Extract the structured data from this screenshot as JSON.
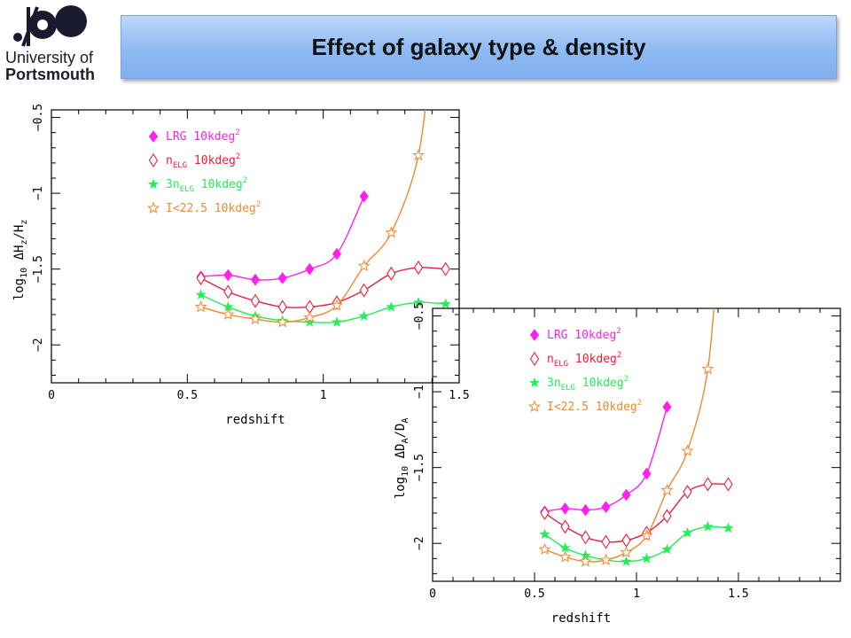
{
  "header": {
    "title": "Effect of galaxy type & density",
    "logo": {
      "line1": "University of",
      "line2": "Portsmouth",
      "color": "#1a1a2e"
    }
  },
  "chart_data": [
    {
      "type": "line",
      "xlabel": "redshift",
      "ylabel": {
        "prefix": "log",
        "sub": "10",
        "main": " ΔH",
        "sub2": "z",
        "tail": "/H",
        "sub3": "z"
      },
      "xlim": [
        0,
        1.5
      ],
      "ylim": [
        -2.25,
        -0.45
      ],
      "xticks": [
        0,
        0.5,
        1,
        1.5
      ],
      "xtick_labels": [
        "0",
        "0.5",
        "1",
        "1.5"
      ],
      "yticks": [
        -2,
        -1.5,
        -1,
        -0.5
      ],
      "ytick_labels": [
        "−2",
        "−1.5",
        "−1",
        "−0.5"
      ],
      "legend_placement": "top-left",
      "series": [
        {
          "name": "LRG 10kdeg",
          "sup": "2",
          "marker": "diamond-filled",
          "color": "#ff22ee",
          "x": [
            0.55,
            0.65,
            0.75,
            0.85,
            0.95,
            1.05,
            1.15
          ],
          "y": [
            -1.55,
            -1.54,
            -1.57,
            -1.56,
            -1.5,
            -1.4,
            -1.02
          ]
        },
        {
          "name": "n",
          "sub": "ELG",
          "tail": " 10kdeg",
          "sup": "2",
          "marker": "diamond-open",
          "color": "#e8203a",
          "x": [
            0.55,
            0.65,
            0.75,
            0.85,
            0.95,
            1.05,
            1.15,
            1.25,
            1.35,
            1.45
          ],
          "y": [
            -1.56,
            -1.65,
            -1.71,
            -1.75,
            -1.75,
            -1.72,
            -1.64,
            -1.53,
            -1.49,
            -1.5
          ]
        },
        {
          "name": "3n",
          "sub": "ELG",
          "tail": " 10kdeg",
          "sup": "2",
          "marker": "star-filled",
          "color": "#22ee55",
          "x": [
            0.55,
            0.65,
            0.75,
            0.85,
            0.95,
            1.05,
            1.15,
            1.25,
            1.35,
            1.45
          ],
          "y": [
            -1.67,
            -1.75,
            -1.81,
            -1.84,
            -1.85,
            -1.85,
            -1.81,
            -1.75,
            -1.72,
            -1.73
          ]
        },
        {
          "name": "I<22.5 10kdeg",
          "sup": "2",
          "marker": "star-open",
          "color": "#f08a30",
          "x": [
            0.55,
            0.65,
            0.75,
            0.85,
            0.95,
            1.05,
            1.15,
            1.25,
            1.35
          ],
          "y": [
            -1.75,
            -1.8,
            -1.83,
            -1.85,
            -1.82,
            -1.74,
            -1.48,
            -1.26,
            -0.75
          ]
        }
      ]
    },
    {
      "type": "line",
      "xlabel": "redshift",
      "ylabel": {
        "prefix": "log",
        "sub": "10",
        "main": " ΔD",
        "sub2": "A",
        "tail": "/D",
        "sub3": "A"
      },
      "xlim": [
        0,
        2
      ],
      "ylim": [
        -2.25,
        -0.45
      ],
      "xticks": [
        0,
        0.5,
        1,
        1.5
      ],
      "xtick_labels": [
        "0",
        "0.5",
        "1",
        "1.5"
      ],
      "yticks": [
        -2,
        -1.5,
        -1,
        -0.5
      ],
      "ytick_labels": [
        "−2",
        "−1.5",
        "−1",
        "−0.5"
      ],
      "legend_placement": "top-left",
      "series": [
        {
          "name": "LRG 10kdeg",
          "sup": "2",
          "marker": "diamond-filled",
          "color": "#ff22ee",
          "x": [
            0.55,
            0.65,
            0.75,
            0.85,
            0.95,
            1.05,
            1.15
          ],
          "y": [
            -1.79,
            -1.77,
            -1.78,
            -1.76,
            -1.68,
            -1.54,
            -1.1
          ]
        },
        {
          "name": "n",
          "sub": "ELG",
          "tail": " 10kdeg",
          "sup": "2",
          "marker": "diamond-open",
          "color": "#e8203a",
          "x": [
            0.55,
            0.65,
            0.75,
            0.85,
            0.95,
            1.05,
            1.15,
            1.25,
            1.35,
            1.45
          ],
          "y": [
            -1.8,
            -1.89,
            -1.96,
            -1.99,
            -1.98,
            -1.93,
            -1.82,
            -1.66,
            -1.61,
            -1.61
          ]
        },
        {
          "name": "3n",
          "sub": "ELG",
          "tail": " 10kdeg",
          "sup": "2",
          "marker": "star-filled",
          "color": "#22ee55",
          "x": [
            0.55,
            0.65,
            0.75,
            0.85,
            0.95,
            1.05,
            1.15,
            1.25,
            1.35,
            1.45
          ],
          "y": [
            -1.94,
            -2.03,
            -2.08,
            -2.11,
            -2.12,
            -2.1,
            -2.04,
            -1.93,
            -1.89,
            -1.9
          ]
        },
        {
          "name": "I<22.5 10kdeg",
          "sup": "2",
          "marker": "star-open",
          "color": "#f08a30",
          "x": [
            0.55,
            0.65,
            0.75,
            0.85,
            0.95,
            1.05,
            1.15,
            1.25,
            1.35
          ],
          "y": [
            -2.04,
            -2.09,
            -2.12,
            -2.11,
            -2.06,
            -1.95,
            -1.65,
            -1.39,
            -0.85
          ]
        }
      ]
    }
  ]
}
